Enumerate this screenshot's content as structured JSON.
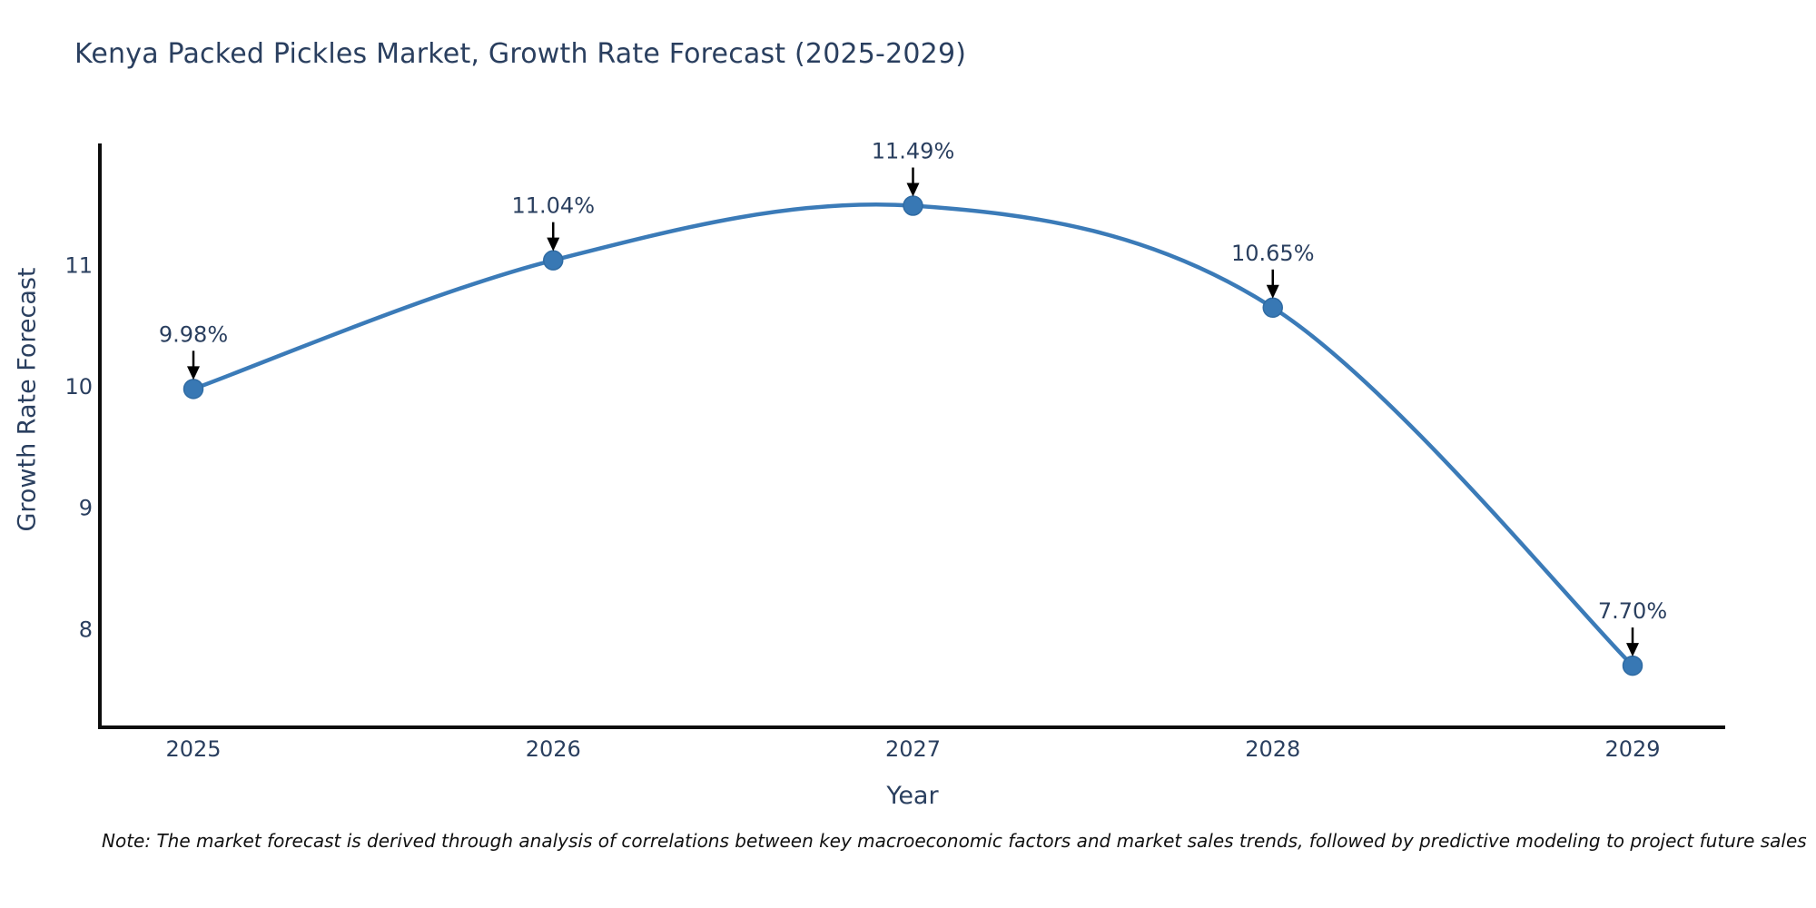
{
  "title": "Kenya Packed Pickles Market, Growth Rate Forecast (2025-2029)",
  "note": "Note: The market forecast is derived through analysis of correlations between key macroeconomic factors and market sales trends, followed by predictive modeling to project future sales",
  "chart_data": {
    "type": "line",
    "title": "Kenya Packed Pickles Market, Growth Rate Forecast (2025-2029)",
    "xlabel": "Year",
    "ylabel": "Growth Rate Forecast",
    "categories": [
      "2025",
      "2026",
      "2027",
      "2028",
      "2029"
    ],
    "values": [
      9.98,
      11.04,
      11.49,
      10.65,
      7.7
    ],
    "point_labels": [
      "9.98%",
      "11.04%",
      "11.49%",
      "10.65%",
      "7.70%"
    ],
    "yticks": [
      8,
      9,
      10,
      11
    ],
    "ylim": [
      7.2,
      12.0
    ],
    "grid": false,
    "legend_position": "none",
    "curve": "spline",
    "line_color": "#3b7bb8",
    "marker_color": "#3878b4",
    "marker_edge_color": "#2f6ba3",
    "arrow_color": "#000000",
    "axis_line_color": "#0d0d0d",
    "tick_text_color": "#2a3f5f",
    "annotation_text_color": "#2a3f5f"
  }
}
